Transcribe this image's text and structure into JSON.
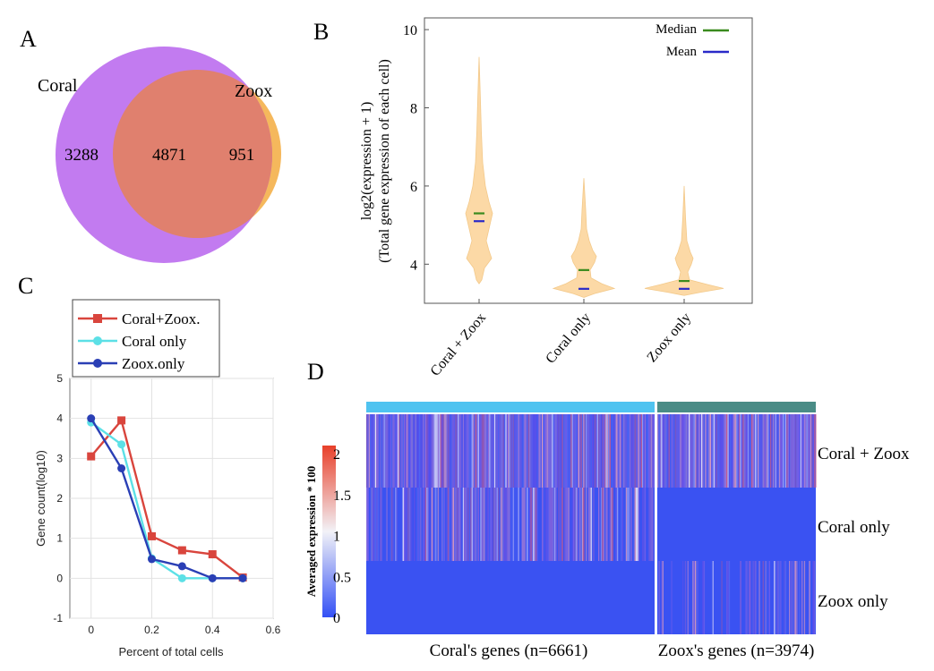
{
  "panels": {
    "A": "A",
    "B": "B",
    "C": "C",
    "D": "D"
  },
  "chart_data": [
    {
      "panel": "A",
      "type": "venn",
      "sets": [
        {
          "name": "Coral",
          "color": "#c27bf0"
        },
        {
          "name": "Zoox",
          "color": "#f5b85c"
        }
      ],
      "counts": {
        "coral_only": 3288,
        "both": 4871,
        "zoox_only": 951
      },
      "overlap_color": "#e0806e"
    },
    {
      "panel": "B",
      "type": "violin",
      "ylabel_line1": "log2(expression + 1)",
      "ylabel_line2": "(Total gene expression of each cell)",
      "categories": [
        "Coral + Zoox",
        "Coral only",
        "Zoox only"
      ],
      "yticks": [
        4,
        6,
        8,
        10
      ],
      "ylim": [
        3.0,
        10.3
      ],
      "median": [
        5.3,
        3.85,
        3.57
      ],
      "mean": [
        5.1,
        3.37,
        3.37
      ],
      "legend": [
        {
          "label": "Median",
          "color": "#3a8a1e"
        },
        {
          "label": "Mean",
          "color": "#2a2ac8"
        }
      ],
      "violin_color": "#fcd9a6",
      "legend_position": "top-right"
    },
    {
      "panel": "C",
      "type": "line",
      "xlabel": "Percent of total cells",
      "ylabel": "Gene count(log10)",
      "xticks": [
        0,
        0.2,
        0.4,
        0.6
      ],
      "yticks": [
        -1,
        0,
        1,
        2,
        3,
        4,
        5
      ],
      "xlim": [
        -0.07,
        0.6
      ],
      "ylim": [
        -1,
        5
      ],
      "grid": true,
      "legend_position": "top-left outside",
      "series": [
        {
          "name": "Coral+Zoox.",
          "color": "#d9453d",
          "marker": "square",
          "x": [
            0,
            0.1,
            0.2,
            0.3,
            0.4,
            0.5
          ],
          "y": [
            3.05,
            3.95,
            1.05,
            0.7,
            0.6,
            0.02
          ]
        },
        {
          "name": "Coral only",
          "color": "#5ce0e6",
          "marker": "circle",
          "x": [
            0,
            0.1,
            0.2,
            0.3,
            0.4,
            0.5
          ],
          "y": [
            3.9,
            3.35,
            0.5,
            0.0,
            0.0,
            0.0
          ]
        },
        {
          "name": "Zoox.only",
          "color": "#2a3fb5",
          "marker": "circle",
          "x": [
            0,
            0.1,
            0.2,
            0.3,
            0.4,
            0.5
          ],
          "y": [
            4.0,
            2.75,
            0.48,
            0.3,
            0.0,
            0.0
          ]
        }
      ]
    },
    {
      "panel": "D",
      "type": "heatmap",
      "colorbar_label": "Averaged expression * 100",
      "colorbar_ticks": [
        0,
        0.5,
        1,
        1.5,
        2
      ],
      "rows": [
        "Coral + Zoox",
        "Coral only",
        "Zoox only"
      ],
      "column_groups": [
        {
          "label": "Coral's genes (n=6661)",
          "color": "#4fc3f0",
          "n": 6661
        },
        {
          "label": "Zoox's genes (n=3974)",
          "color": "#4a8c86",
          "n": 3974
        }
      ],
      "colors": {
        "low": "#3350f5",
        "mid": "#f2f2f7",
        "high": "#e8402a"
      }
    }
  ]
}
